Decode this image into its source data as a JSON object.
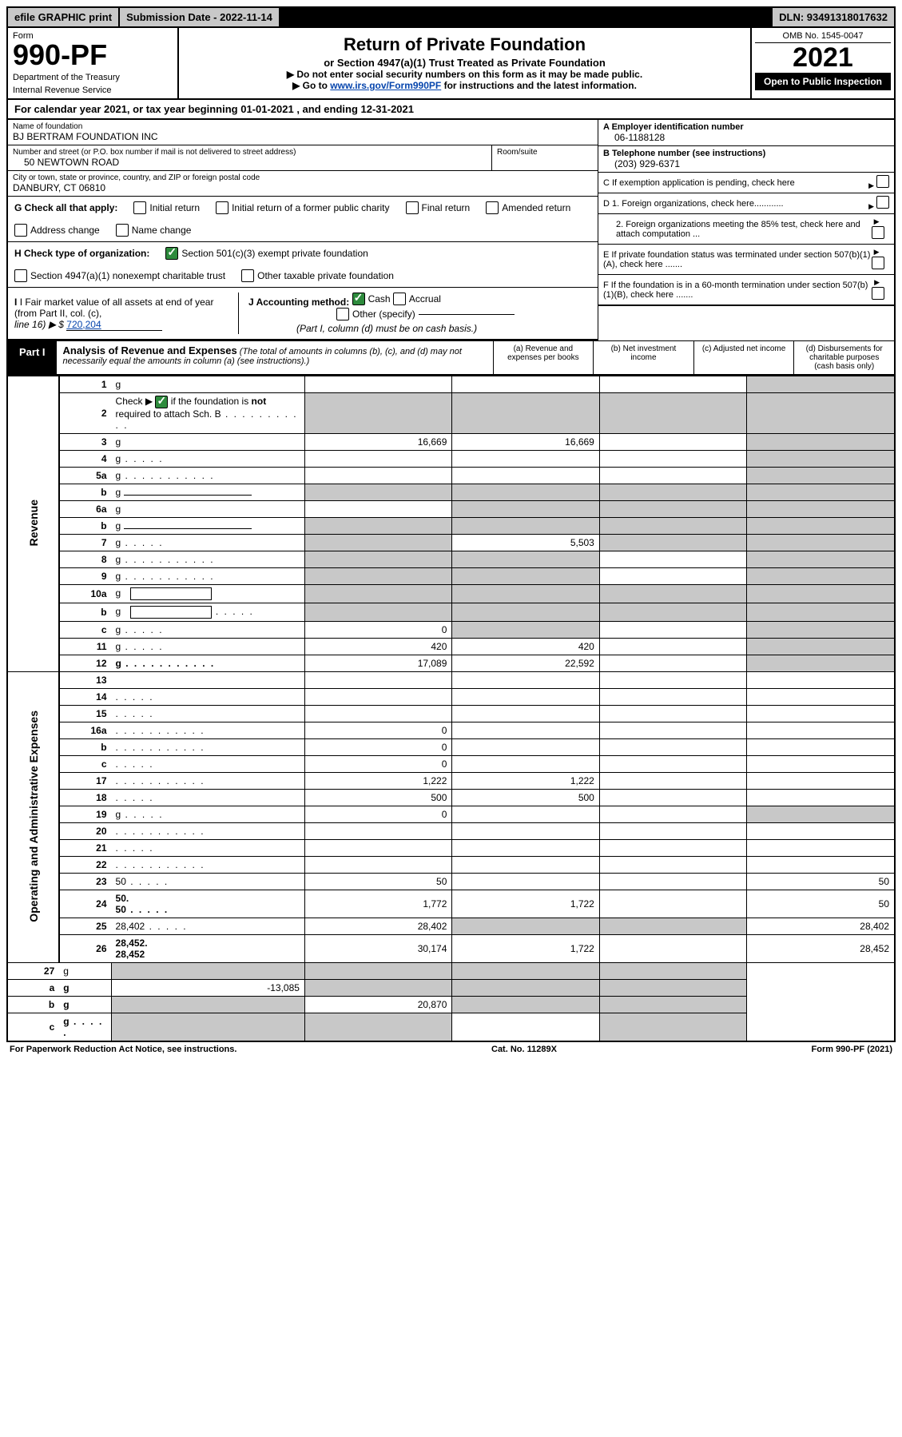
{
  "top": {
    "efile": "efile GRAPHIC print",
    "submission": "Submission Date - 2022-11-14",
    "dln": "DLN: 93491318017632"
  },
  "header": {
    "form_label": "Form",
    "form_number": "990-PF",
    "dept1": "Department of the Treasury",
    "dept2": "Internal Revenue Service",
    "title": "Return of Private Foundation",
    "subtitle": "or Section 4947(a)(1) Trust Treated as Private Foundation",
    "note1": "▶ Do not enter social security numbers on this form as it may be made public.",
    "note2_pre": "▶ Go to ",
    "note2_link": "www.irs.gov/Form990PF",
    "note2_post": " for instructions and the latest information.",
    "omb": "OMB No. 1545-0047",
    "year": "2021",
    "open": "Open to Public Inspection"
  },
  "calyear": "For calendar year 2021, or tax year beginning 01-01-2021             , and ending 12-31-2021",
  "filer": {
    "name_lbl": "Name of foundation",
    "name": "BJ BERTRAM FOUNDATION INC",
    "addr_lbl": "Number and street (or P.O. box number if mail is not delivered to street address)",
    "addr": "50 NEWTOWN ROAD",
    "room_lbl": "Room/suite",
    "city_lbl": "City or town, state or province, country, and ZIP or foreign postal code",
    "city": "DANBURY, CT  06810"
  },
  "right": {
    "A_lbl": "A Employer identification number",
    "A": "06-1188128",
    "B_lbl": "B Telephone number (see instructions)",
    "B": "(203) 929-6371",
    "C": "C If exemption application is pending, check here",
    "D1": "D 1. Foreign organizations, check here............",
    "D2": "2. Foreign organizations meeting the 85% test, check here and attach computation ...",
    "E": "E  If private foundation status was terminated under section 507(b)(1)(A), check here .......",
    "F": "F  If the foundation is in a 60-month termination under section 507(b)(1)(B), check here ......."
  },
  "G": {
    "label": "G Check all that apply:",
    "opts": [
      "Initial return",
      "Initial return of a former public charity",
      "Final return",
      "Amended return",
      "Address change",
      "Name change"
    ]
  },
  "H": {
    "label": "H Check type of organization:",
    "o1": "Section 501(c)(3) exempt private foundation",
    "o2": "Section 4947(a)(1) nonexempt charitable trust",
    "o3": "Other taxable private foundation"
  },
  "I": {
    "label1": "I Fair market value of all assets at end of year (from Part II, col. (c),",
    "label2": "line 16) ▶ $",
    "value": "720,204"
  },
  "J": {
    "label": "J Accounting method:",
    "cash": "Cash",
    "accrual": "Accrual",
    "other": "Other (specify)",
    "note": "(Part I, column (d) must be on cash basis.)"
  },
  "part1": {
    "label": "Part I",
    "title": "Analysis of Revenue and Expenses",
    "note": " (The total of amounts in columns (b), (c), and (d) may not necessarily equal the amounts in column (a) (see instructions).)",
    "cols": {
      "a": "(a)   Revenue and expenses per books",
      "b": "(b)   Net investment income",
      "c": "(c)   Adjusted net income",
      "d": "(d)   Disbursements for charitable purposes (cash basis only)"
    }
  },
  "side": {
    "rev": "Revenue",
    "exp": "Operating and Administrative Expenses"
  },
  "rows": [
    {
      "n": "1",
      "d": "g",
      "a": "",
      "b": "",
      "c": ""
    },
    {
      "n": "2",
      "d": "g",
      "dots": true,
      "a": "g",
      "b": "g",
      "c": "g",
      "checked": true,
      "bold_not": true
    },
    {
      "n": "3",
      "d": "g",
      "a": "16,669",
      "b": "16,669",
      "c": ""
    },
    {
      "n": "4",
      "d": "g",
      "dots": "s",
      "a": "",
      "b": "",
      "c": ""
    },
    {
      "n": "5a",
      "d": "g",
      "dots": true,
      "a": "",
      "b": "",
      "c": ""
    },
    {
      "n": "b",
      "d": "g",
      "underline": true,
      "a": "g",
      "b": "g",
      "c": "g"
    },
    {
      "n": "6a",
      "d": "g",
      "a": "",
      "b": "g",
      "c": "g"
    },
    {
      "n": "b",
      "d": "g",
      "underline": true,
      "a": "g",
      "b": "g",
      "c": "g"
    },
    {
      "n": "7",
      "d": "g",
      "dots": "s",
      "a": "g",
      "b": "5,503",
      "c": "g"
    },
    {
      "n": "8",
      "d": "g",
      "dots": true,
      "a": "g",
      "b": "g",
      "c": ""
    },
    {
      "n": "9",
      "d": "g",
      "dots": true,
      "a": "g",
      "b": "g",
      "c": ""
    },
    {
      "n": "10a",
      "d": "g",
      "box": true,
      "a": "g",
      "b": "g",
      "c": "g"
    },
    {
      "n": "b",
      "d": "g",
      "dots": "s",
      "box": true,
      "a": "g",
      "b": "g",
      "c": "g"
    },
    {
      "n": "c",
      "d": "g",
      "dots": "s",
      "a": "0",
      "b": "g",
      "c": ""
    },
    {
      "n": "11",
      "d": "g",
      "dots": "s",
      "a": "420",
      "b": "420",
      "c": ""
    },
    {
      "n": "12",
      "d": "g",
      "dots": true,
      "bold": true,
      "a": "17,089",
      "b": "22,592",
      "c": ""
    }
  ],
  "exp_rows": [
    {
      "n": "13",
      "d": "",
      "a": "",
      "b": "",
      "c": ""
    },
    {
      "n": "14",
      "d": "",
      "dots": "s",
      "a": "",
      "b": "",
      "c": ""
    },
    {
      "n": "15",
      "d": "",
      "dots": "s",
      "a": "",
      "b": "",
      "c": ""
    },
    {
      "n": "16a",
      "d": "",
      "dots": true,
      "a": "0",
      "b": "",
      "c": ""
    },
    {
      "n": "b",
      "d": "",
      "dots": true,
      "a": "0",
      "b": "",
      "c": ""
    },
    {
      "n": "c",
      "d": "",
      "dots": "s",
      "a": "0",
      "b": "",
      "c": ""
    },
    {
      "n": "17",
      "d": "",
      "dots": true,
      "a": "1,222",
      "b": "1,222",
      "c": ""
    },
    {
      "n": "18",
      "d": "",
      "dots": "s",
      "a": "500",
      "b": "500",
      "c": ""
    },
    {
      "n": "19",
      "d": "g",
      "dots": "s",
      "a": "0",
      "b": "",
      "c": ""
    },
    {
      "n": "20",
      "d": "",
      "dots": true,
      "a": "",
      "b": "",
      "c": ""
    },
    {
      "n": "21",
      "d": "",
      "dots": "s",
      "a": "",
      "b": "",
      "c": ""
    },
    {
      "n": "22",
      "d": "",
      "dots": true,
      "a": "",
      "b": "",
      "c": ""
    },
    {
      "n": "23",
      "d": "50",
      "dots": "s",
      "a": "50",
      "b": "",
      "c": ""
    },
    {
      "n": "24",
      "d": "50",
      "dots": "s",
      "bold": true,
      "two": true,
      "a": "1,772",
      "b": "1,722",
      "c": ""
    },
    {
      "n": "25",
      "d": "28,402",
      "dots": "s",
      "a": "28,402",
      "b": "g",
      "c": "g"
    },
    {
      "n": "26",
      "d": "28,452",
      "bold": true,
      "two": true,
      "a": "30,174",
      "b": "1,722",
      "c": ""
    }
  ],
  "final_rows": [
    {
      "n": "27",
      "d": "g",
      "a": "g",
      "b": "g",
      "c": "g"
    },
    {
      "n": "a",
      "d": "g",
      "bold": true,
      "a": "-13,085",
      "b": "g",
      "c": "g"
    },
    {
      "n": "b",
      "d": "g",
      "bold": true,
      "a": "g",
      "b": "20,870",
      "c": "g"
    },
    {
      "n": "c",
      "d": "g",
      "dots": "s",
      "bold": true,
      "a": "g",
      "b": "g",
      "c": ""
    }
  ],
  "footer": {
    "left": "For Paperwork Reduction Act Notice, see instructions.",
    "mid": "Cat. No. 11289X",
    "right": "Form 990-PF (2021)"
  },
  "colors": {
    "grey": "#c8c8c8",
    "green": "#2e8b3d",
    "link": "#0645ad"
  }
}
